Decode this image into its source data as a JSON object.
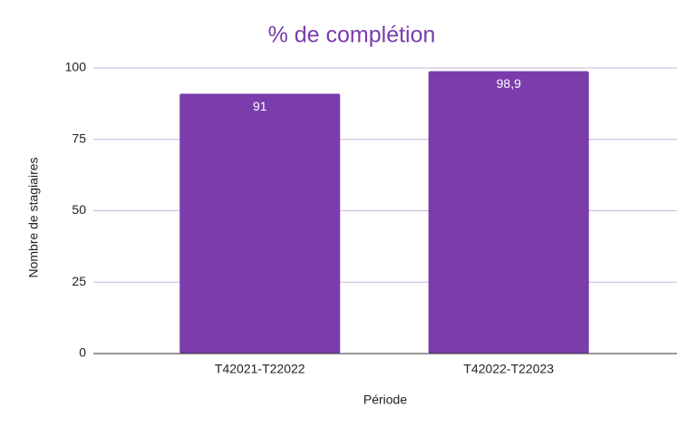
{
  "chart_data": {
    "type": "bar",
    "title": "% de complétion",
    "categories": [
      "T42021-T22022",
      "T42022-T22023"
    ],
    "values": [
      91,
      98.9
    ],
    "value_labels": [
      "91",
      "98,9"
    ],
    "color": "#7a3dab",
    "x_label": "Période",
    "y_label": "Nombre de stagiaires",
    "ylim": [
      0,
      100
    ],
    "yticks": [
      0,
      25,
      50,
      75,
      100
    ],
    "grid": true
  }
}
